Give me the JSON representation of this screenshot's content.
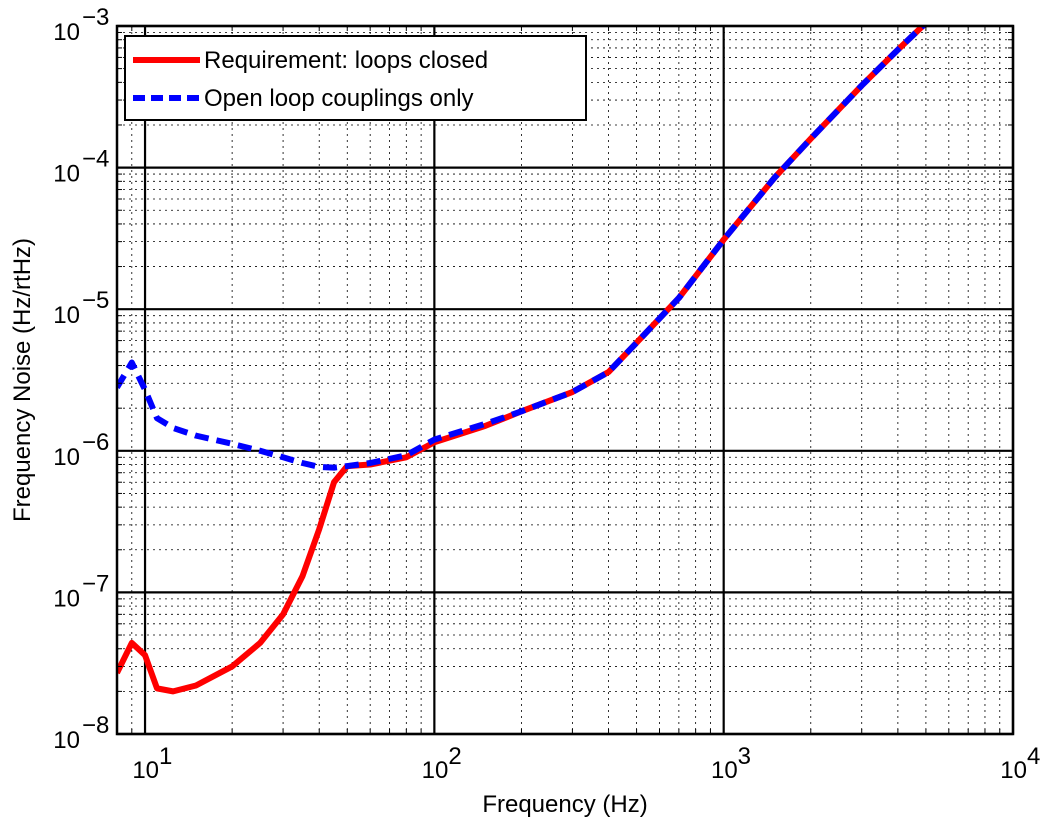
{
  "chart_data": {
    "type": "line",
    "title": "",
    "xlabel": "Frequency (Hz)",
    "ylabel": "Frequency Noise (Hz/rtHz)",
    "xscale": "log",
    "yscale": "log",
    "xlim": [
      8,
      10000
    ],
    "ylim": [
      1e-08,
      0.001
    ],
    "x_ticks": [
      {
        "value": 10,
        "base": "10",
        "exp": "1"
      },
      {
        "value": 100,
        "base": "10",
        "exp": "2"
      },
      {
        "value": 1000,
        "base": "10",
        "exp": "3"
      },
      {
        "value": 10000,
        "base": "10",
        "exp": "4"
      }
    ],
    "y_ticks": [
      {
        "value": 1e-08,
        "base": "10",
        "exp": "−8"
      },
      {
        "value": 1e-07,
        "base": "10",
        "exp": "−7"
      },
      {
        "value": 1e-06,
        "base": "10",
        "exp": "−6"
      },
      {
        "value": 1e-05,
        "base": "10",
        "exp": "−5"
      },
      {
        "value": 0.0001,
        "base": "10",
        "exp": "−4"
      },
      {
        "value": 0.001,
        "base": "10",
        "exp": "−3"
      }
    ],
    "grid": true,
    "legend_position": "top-left",
    "series": [
      {
        "name": "Requirement: loops closed",
        "color": "#ff0000",
        "style": "solid",
        "points": [
          [
            8,
            2.7e-08
          ],
          [
            9,
            4.4e-08
          ],
          [
            10,
            3.6e-08
          ],
          [
            11,
            2.1e-08
          ],
          [
            12.5,
            2e-08
          ],
          [
            15,
            2.2e-08
          ],
          [
            20,
            3e-08
          ],
          [
            25,
            4.4e-08
          ],
          [
            30,
            7e-08
          ],
          [
            35,
            1.3e-07
          ],
          [
            40,
            2.8e-07
          ],
          [
            45,
            6e-07
          ],
          [
            50,
            7.8e-07
          ],
          [
            60,
            8e-07
          ],
          [
            80,
            9e-07
          ],
          [
            100,
            1.15e-06
          ],
          [
            150,
            1.5e-06
          ],
          [
            200,
            1.9e-06
          ],
          [
            300,
            2.6e-06
          ],
          [
            400,
            3.6e-06
          ],
          [
            500,
            5.8e-06
          ],
          [
            700,
            1.2e-05
          ],
          [
            1000,
            3.1e-05
          ],
          [
            1500,
            8.5e-05
          ],
          [
            2000,
            0.00016
          ],
          [
            3000,
            0.00038
          ],
          [
            4000,
            0.00068
          ],
          [
            5000,
            0.00105
          ]
        ]
      },
      {
        "name": "Open loop couplings only",
        "color": "#0000ff",
        "style": "dashed",
        "points": [
          [
            8,
            2.8e-06
          ],
          [
            9,
            4.2e-06
          ],
          [
            10,
            2.7e-06
          ],
          [
            11,
            1.7e-06
          ],
          [
            12.5,
            1.45e-06
          ],
          [
            15,
            1.28e-06
          ],
          [
            20,
            1.12e-06
          ],
          [
            25,
            1e-06
          ],
          [
            30,
            9e-07
          ],
          [
            35,
            8.2e-07
          ],
          [
            40,
            7.7e-07
          ],
          [
            45,
            7.6e-07
          ],
          [
            50,
            7.8e-07
          ],
          [
            60,
            8.2e-07
          ],
          [
            80,
            9.3e-07
          ],
          [
            100,
            1.2e-06
          ],
          [
            150,
            1.55e-06
          ],
          [
            200,
            1.9e-06
          ],
          [
            300,
            2.6e-06
          ],
          [
            400,
            3.6e-06
          ],
          [
            500,
            5.8e-06
          ],
          [
            700,
            1.2e-05
          ],
          [
            1000,
            3.1e-05
          ],
          [
            1500,
            8.5e-05
          ],
          [
            2000,
            0.00016
          ],
          [
            3000,
            0.00038
          ],
          [
            4000,
            0.00068
          ],
          [
            5000,
            0.00105
          ]
        ]
      }
    ]
  }
}
